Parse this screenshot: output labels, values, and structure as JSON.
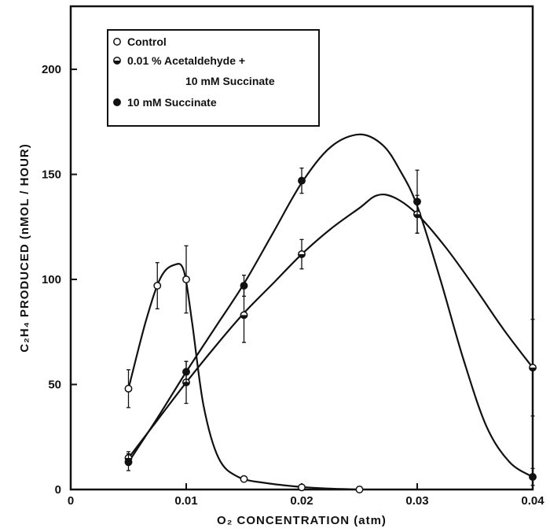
{
  "chart_data": {
    "type": "line",
    "xlabel": "O₂  CONCENTRATION  (atm)",
    "ylabel": "C₂H₄  PRODUCED  (nMOL / HOUR)",
    "xlim": [
      0,
      0.04
    ],
    "ylim": [
      0,
      230
    ],
    "x_ticks": [
      0,
      0.01,
      0.02,
      0.03,
      0.04
    ],
    "x_tick_labels": [
      "0",
      "0.01",
      "0.02",
      "0.03",
      "0.04"
    ],
    "y_ticks": [
      0,
      50,
      100,
      150,
      200
    ],
    "y_tick_labels": [
      "0",
      "50",
      "100",
      "150",
      "200"
    ],
    "grid": false,
    "legend_position": "top-left",
    "legend": [
      {
        "marker": "open",
        "text": [
          "Control"
        ]
      },
      {
        "marker": "half",
        "text": [
          "0.01 %  Acetaldehyde +",
          "10 mM  Succinate"
        ]
      },
      {
        "marker": "filled",
        "text": [
          "10 mM  Succinate"
        ]
      }
    ],
    "series": [
      {
        "marker": "open",
        "points": [
          {
            "x": 0.005,
            "y": 48,
            "err": 9
          },
          {
            "x": 0.0075,
            "y": 97,
            "err": 11
          },
          {
            "x": 0.01,
            "y": 100,
            "err": 16
          },
          {
            "x": 0.015,
            "y": 5,
            "err": 1
          },
          {
            "x": 0.02,
            "y": 1,
            "err": 0
          },
          {
            "x": 0.025,
            "y": 0,
            "err": 0
          }
        ],
        "curve": [
          [
            0.005,
            48
          ],
          [
            0.0065,
            80
          ],
          [
            0.0078,
            101
          ],
          [
            0.009,
            107
          ],
          [
            0.0098,
            104
          ],
          [
            0.0105,
            80
          ],
          [
            0.0115,
            40
          ],
          [
            0.0128,
            15
          ],
          [
            0.0145,
            6
          ],
          [
            0.017,
            3
          ],
          [
            0.02,
            1.2
          ],
          [
            0.0225,
            0.4
          ],
          [
            0.025,
            0
          ]
        ]
      },
      {
        "marker": "half",
        "points": [
          {
            "x": 0.005,
            "y": 15,
            "err": 3
          },
          {
            "x": 0.01,
            "y": 51,
            "err": 10
          },
          {
            "x": 0.015,
            "y": 83,
            "err": 13
          },
          {
            "x": 0.02,
            "y": 112,
            "err": 7
          },
          {
            "x": 0.03,
            "y": 131,
            "err": 9
          },
          {
            "x": 0.04,
            "y": 58,
            "err": 23
          }
        ],
        "curve": [
          [
            0.005,
            15
          ],
          [
            0.0075,
            33
          ],
          [
            0.01,
            51
          ],
          [
            0.0125,
            68
          ],
          [
            0.015,
            84
          ],
          [
            0.0175,
            98
          ],
          [
            0.02,
            112
          ],
          [
            0.0225,
            124
          ],
          [
            0.025,
            134
          ],
          [
            0.0265,
            140
          ],
          [
            0.028,
            139
          ],
          [
            0.03,
            131
          ],
          [
            0.0325,
            115
          ],
          [
            0.035,
            96
          ],
          [
            0.0375,
            76
          ],
          [
            0.04,
            58
          ]
        ]
      },
      {
        "marker": "filled",
        "points": [
          {
            "x": 0.005,
            "y": 13,
            "err": 4
          },
          {
            "x": 0.01,
            "y": 56,
            "err": 5
          },
          {
            "x": 0.015,
            "y": 97,
            "err": 5
          },
          {
            "x": 0.02,
            "y": 147,
            "err": 6
          },
          {
            "x": 0.03,
            "y": 137,
            "err": 15
          },
          {
            "x": 0.04,
            "y": 6,
            "err": 4
          }
        ],
        "curve": [
          [
            0.005,
            13
          ],
          [
            0.0075,
            34
          ],
          [
            0.01,
            56
          ],
          [
            0.0125,
            77
          ],
          [
            0.015,
            98
          ],
          [
            0.0175,
            122
          ],
          [
            0.02,
            146
          ],
          [
            0.0225,
            163
          ],
          [
            0.025,
            169
          ],
          [
            0.027,
            164
          ],
          [
            0.0285,
            152
          ],
          [
            0.03,
            135
          ],
          [
            0.032,
            100
          ],
          [
            0.034,
            62
          ],
          [
            0.036,
            30
          ],
          [
            0.038,
            13
          ],
          [
            0.04,
            6
          ]
        ]
      }
    ]
  }
}
